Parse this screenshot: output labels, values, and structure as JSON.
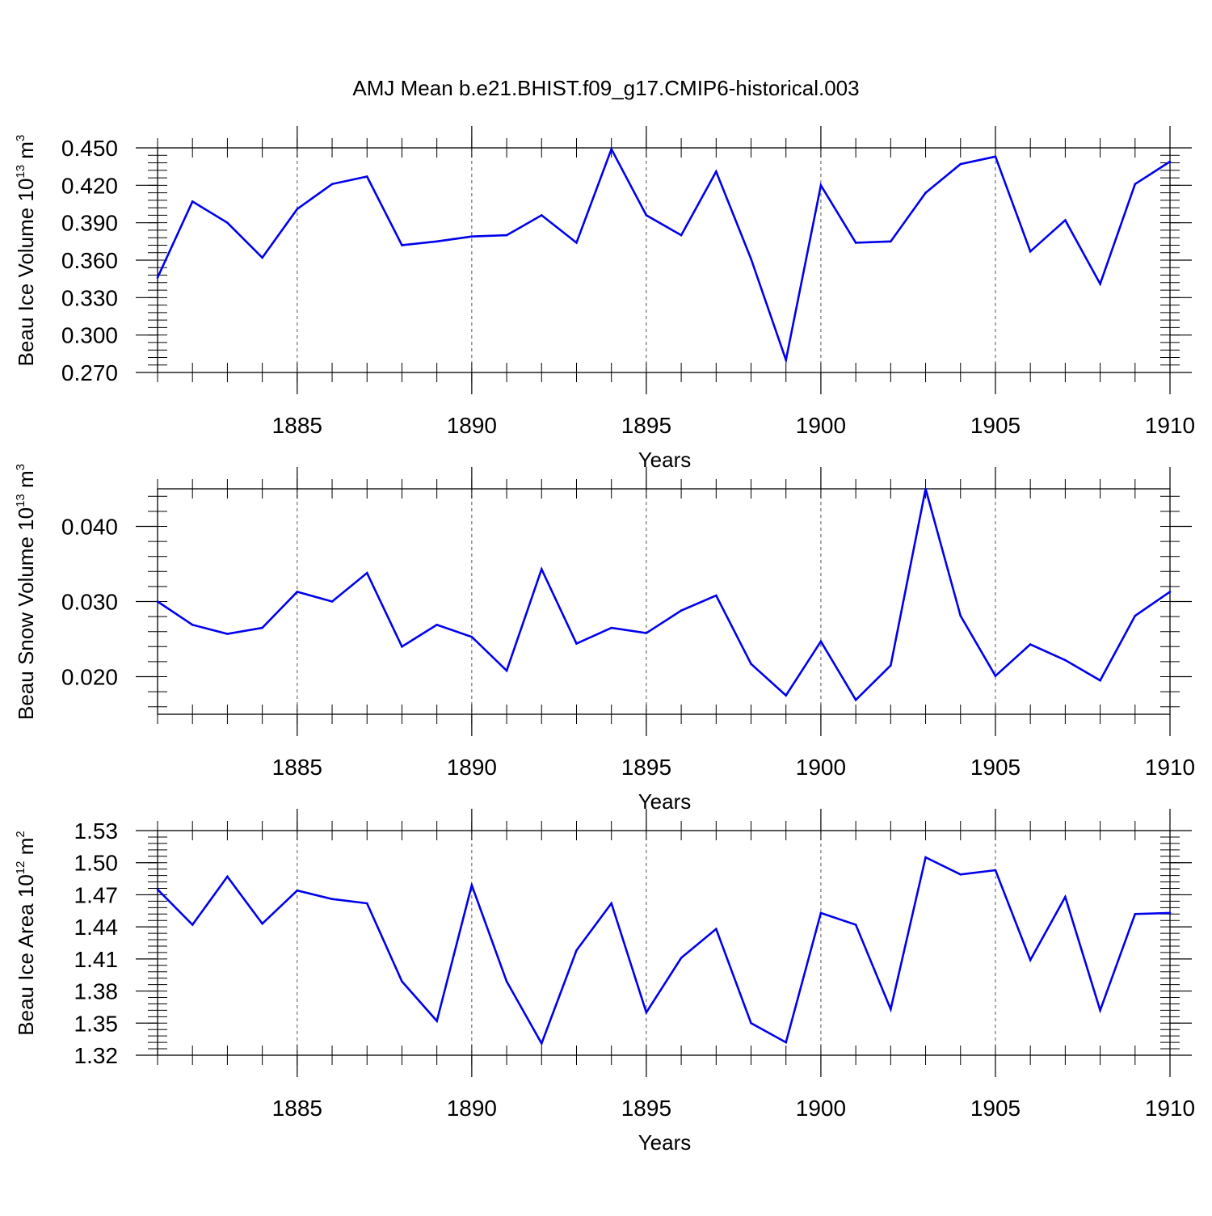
{
  "title": "AMJ Mean b.e21.BHIST.f09_g17.CMIP6-historical.003",
  "colors": {
    "line": "#0000ee",
    "axis": "#000000",
    "grid": "#555555"
  },
  "chart_data": [
    {
      "type": "line",
      "ylabel": {
        "main": "Beau Ice Volume 10",
        "sup": "13",
        "unit": " m",
        "unit_sup": "3"
      },
      "xlabel": "Years",
      "xlim": [
        1881,
        1910
      ],
      "ylim": [
        0.27,
        0.45
      ],
      "yticks": [
        0.27,
        0.3,
        0.33,
        0.36,
        0.39,
        0.42,
        0.45
      ],
      "ytick_labels": [
        "0.270",
        "0.300",
        "0.330",
        "0.360",
        "0.390",
        "0.420",
        "0.450"
      ],
      "xticks": [
        1885,
        1890,
        1895,
        1900,
        1905,
        1910
      ],
      "xtick_labels": [
        "1885",
        "1890",
        "1895",
        "1900",
        "1905",
        "1910"
      ],
      "grid": "vertical dashed at major x ticks",
      "x": [
        1881,
        1882,
        1883,
        1884,
        1885,
        1886,
        1887,
        1888,
        1889,
        1890,
        1891,
        1892,
        1893,
        1894,
        1895,
        1896,
        1897,
        1898,
        1899,
        1900,
        1901,
        1902,
        1903,
        1904,
        1905,
        1906,
        1907,
        1908,
        1909,
        1910
      ],
      "series": [
        {
          "values": [
            0.346,
            0.407,
            0.39,
            0.362,
            0.401,
            0.421,
            0.427,
            0.372,
            0.375,
            0.379,
            0.38,
            0.396,
            0.374,
            0.449,
            0.396,
            0.38,
            0.431,
            0.361,
            0.28,
            0.42,
            0.374,
            0.375,
            0.414,
            0.437,
            0.443,
            0.367,
            0.392,
            0.341,
            0.421,
            0.439
          ]
        }
      ]
    },
    {
      "type": "line",
      "ylabel": {
        "main": "Beau Snow Volume 10",
        "sup": "13",
        "unit": " m",
        "unit_sup": "3"
      },
      "xlabel": "Years",
      "xlim": [
        1881,
        1910
      ],
      "ylim": [
        0.015,
        0.045
      ],
      "yticks": [
        0.02,
        0.03,
        0.04
      ],
      "ytick_labels": [
        "0.020",
        "0.030",
        "0.040"
      ],
      "xticks": [
        1885,
        1890,
        1895,
        1900,
        1905,
        1910
      ],
      "xtick_labels": [
        "1885",
        "1890",
        "1895",
        "1900",
        "1905",
        "1910"
      ],
      "grid": "vertical dashed at major x ticks",
      "x": [
        1881,
        1882,
        1883,
        1884,
        1885,
        1886,
        1887,
        1888,
        1889,
        1890,
        1891,
        1892,
        1893,
        1894,
        1895,
        1896,
        1897,
        1898,
        1899,
        1900,
        1901,
        1902,
        1903,
        1904,
        1905,
        1906,
        1907,
        1908,
        1909,
        1910
      ],
      "series": [
        {
          "values": [
            0.03,
            0.0269,
            0.0257,
            0.0265,
            0.0313,
            0.03,
            0.0338,
            0.024,
            0.0269,
            0.0253,
            0.0208,
            0.0343,
            0.0244,
            0.0265,
            0.0258,
            0.0288,
            0.0308,
            0.0217,
            0.0175,
            0.0247,
            0.0169,
            0.0215,
            0.045,
            0.0281,
            0.0201,
            0.0243,
            0.0222,
            0.0195,
            0.0281,
            0.0313
          ]
        }
      ]
    },
    {
      "type": "line",
      "ylabel": {
        "main": "Beau Ice Area 10",
        "sup": "12",
        "unit": " m",
        "unit_sup": "2"
      },
      "xlabel": "Years",
      "xlim": [
        1881,
        1910
      ],
      "ylim": [
        1.32,
        1.53
      ],
      "yticks": [
        1.32,
        1.35,
        1.38,
        1.41,
        1.44,
        1.47,
        1.5,
        1.53
      ],
      "ytick_labels": [
        "1.32",
        "1.35",
        "1.38",
        "1.41",
        "1.44",
        "1.47",
        "1.50",
        "1.53"
      ],
      "xticks": [
        1885,
        1890,
        1895,
        1900,
        1905,
        1910
      ],
      "xtick_labels": [
        "1885",
        "1890",
        "1895",
        "1900",
        "1905",
        "1910"
      ],
      "grid": "vertical dashed at major x ticks",
      "x": [
        1881,
        1882,
        1883,
        1884,
        1885,
        1886,
        1887,
        1888,
        1889,
        1890,
        1891,
        1892,
        1893,
        1894,
        1895,
        1896,
        1897,
        1898,
        1899,
        1900,
        1901,
        1902,
        1903,
        1904,
        1905,
        1906,
        1907,
        1908,
        1909,
        1910
      ],
      "series": [
        {
          "values": [
            1.475,
            1.442,
            1.487,
            1.443,
            1.474,
            1.466,
            1.462,
            1.389,
            1.352,
            1.479,
            1.389,
            1.331,
            1.418,
            1.462,
            1.36,
            1.411,
            1.438,
            1.35,
            1.332,
            1.453,
            1.442,
            1.363,
            1.505,
            1.489,
            1.493,
            1.409,
            1.468,
            1.362,
            1.452,
            1.453
          ]
        }
      ]
    }
  ]
}
